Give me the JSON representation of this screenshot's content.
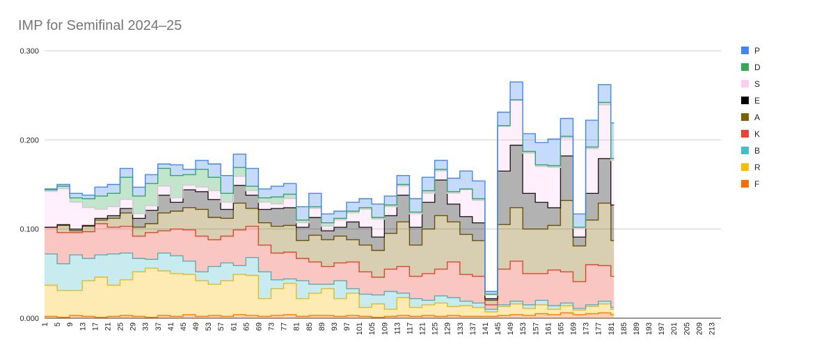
{
  "chart_data": {
    "type": "area",
    "stacked": true,
    "step": true,
    "title": "IMP for Semifinal 2024–25",
    "xlabel": "",
    "ylabel": "",
    "ylim": [
      0,
      0.3
    ],
    "y_ticks": [
      "0.000",
      "0.100",
      "0.200",
      "0.300"
    ],
    "x_range": [
      1,
      216
    ],
    "x_ticks": [
      1,
      5,
      9,
      13,
      17,
      21,
      25,
      29,
      33,
      37,
      41,
      45,
      49,
      53,
      57,
      61,
      65,
      69,
      73,
      77,
      81,
      85,
      89,
      93,
      97,
      101,
      105,
      109,
      113,
      117,
      121,
      125,
      129,
      133,
      137,
      141,
      145,
      149,
      153,
      157,
      161,
      165,
      169,
      173,
      177,
      181,
      185,
      189,
      193,
      197,
      201,
      205,
      209,
      213
    ],
    "data_end_x": 182,
    "grid": true,
    "legend_position": "right",
    "series_colors": {
      "P": "#4285f4",
      "D": "#34a853",
      "S": "#ffccf2",
      "E": "#000000",
      "A": "#7f6000",
      "K": "#ea4335",
      "B": "#46bdc6",
      "R": "#fbbc04",
      "F": "#ff6d01"
    },
    "legend": [
      "P",
      "D",
      "S",
      "E",
      "A",
      "K",
      "B",
      "R",
      "F"
    ],
    "stack_order_bottom_to_top": [
      "F",
      "R",
      "B",
      "K",
      "A",
      "E",
      "S",
      "D",
      "P"
    ],
    "sample_x": [
      1,
      5,
      9,
      13,
      17,
      21,
      25,
      29,
      33,
      37,
      41,
      45,
      49,
      53,
      57,
      61,
      65,
      69,
      73,
      77,
      81,
      85,
      89,
      93,
      97,
      101,
      105,
      109,
      113,
      117,
      121,
      125,
      129,
      133,
      137,
      141,
      145,
      149,
      153,
      157,
      161,
      165,
      169,
      173,
      177,
      181
    ],
    "series": [
      {
        "name": "F",
        "values": [
          0.002,
          0.001,
          0.003,
          0.002,
          0.001,
          0.002,
          0.003,
          0.002,
          0.001,
          0.003,
          0.002,
          0.004,
          0.002,
          0.003,
          0.002,
          0.004,
          0.003,
          0.002,
          0.003,
          0.004,
          0.002,
          0.003,
          0.003,
          0.002,
          0.003,
          0.002,
          0.001,
          0.002,
          0.003,
          0.002,
          0.003,
          0.002,
          0.003,
          0.002,
          0.002,
          0.002,
          0.003,
          0.004,
          0.003,
          0.005,
          0.004,
          0.006,
          0.004,
          0.005,
          0.006,
          0.004
        ]
      },
      {
        "name": "R",
        "values": [
          0.035,
          0.03,
          0.028,
          0.04,
          0.045,
          0.035,
          0.04,
          0.05,
          0.055,
          0.05,
          0.048,
          0.045,
          0.04,
          0.035,
          0.04,
          0.045,
          0.045,
          0.02,
          0.03,
          0.035,
          0.02,
          0.025,
          0.03,
          0.02,
          0.025,
          0.01,
          0.015,
          0.008,
          0.02,
          0.01,
          0.012,
          0.015,
          0.01,
          0.012,
          0.01,
          0.005,
          0.01,
          0.012,
          0.008,
          0.01,
          0.006,
          0.008,
          0.005,
          0.008,
          0.01,
          0.006
        ]
      },
      {
        "name": "B",
        "values": [
          0.035,
          0.03,
          0.04,
          0.025,
          0.025,
          0.035,
          0.03,
          0.015,
          0.01,
          0.02,
          0.02,
          0.015,
          0.01,
          0.02,
          0.02,
          0.01,
          0.02,
          0.03,
          0.01,
          0.005,
          0.02,
          0.01,
          0.005,
          0.02,
          0.005,
          0.015,
          0.01,
          0.02,
          0.005,
          0.01,
          0.005,
          0.008,
          0.01,
          0.005,
          0.005,
          0.003,
          0.002,
          0.003,
          0.004,
          0.005,
          0.004,
          0.003,
          0.002,
          0.002,
          0.003,
          0.002
        ]
      },
      {
        "name": "K",
        "values": [
          0.03,
          0.035,
          0.025,
          0.03,
          0.035,
          0.03,
          0.03,
          0.025,
          0.03,
          0.025,
          0.03,
          0.035,
          0.04,
          0.03,
          0.03,
          0.04,
          0.035,
          0.03,
          0.03,
          0.03,
          0.025,
          0.025,
          0.02,
          0.02,
          0.03,
          0.025,
          0.02,
          0.025,
          0.03,
          0.025,
          0.03,
          0.03,
          0.04,
          0.03,
          0.03,
          0.005,
          0.04,
          0.045,
          0.035,
          0.03,
          0.04,
          0.035,
          0.03,
          0.045,
          0.04,
          0.035
        ]
      },
      {
        "name": "A",
        "values": [
          0.0,
          0.008,
          0.002,
          0.006,
          0.004,
          0.01,
          0.015,
          0.01,
          0.01,
          0.02,
          0.02,
          0.025,
          0.03,
          0.025,
          0.02,
          0.03,
          0.02,
          0.025,
          0.03,
          0.03,
          0.02,
          0.03,
          0.03,
          0.03,
          0.025,
          0.03,
          0.03,
          0.04,
          0.05,
          0.035,
          0.05,
          0.06,
          0.045,
          0.045,
          0.04,
          0.005,
          0.05,
          0.06,
          0.05,
          0.05,
          0.05,
          0.08,
          0.04,
          0.05,
          0.07,
          0.04
        ]
      },
      {
        "name": "E",
        "values": [
          0.0,
          0.001,
          0.002,
          0.001,
          0.002,
          0.003,
          0.005,
          0.01,
          0.015,
          0.02,
          0.01,
          0.02,
          0.02,
          0.02,
          0.01,
          0.02,
          0.015,
          0.015,
          0.02,
          0.02,
          0.015,
          0.02,
          0.01,
          0.01,
          0.02,
          0.02,
          0.015,
          0.02,
          0.03,
          0.02,
          0.03,
          0.04,
          0.02,
          0.02,
          0.02,
          0.002,
          0.06,
          0.07,
          0.04,
          0.03,
          0.02,
          0.05,
          0.01,
          0.03,
          0.05,
          0.04
        ]
      },
      {
        "name": "S",
        "values": [
          0.04,
          0.04,
          0.03,
          0.02,
          0.01,
          0.01,
          0.01,
          0.005,
          0.005,
          0.01,
          0.005,
          0.005,
          0.005,
          0.01,
          0.008,
          0.01,
          0.005,
          0.008,
          0.005,
          0.01,
          0.005,
          0.01,
          0.005,
          0.008,
          0.01,
          0.02,
          0.02,
          0.01,
          0.01,
          0.015,
          0.01,
          0.01,
          0.012,
          0.03,
          0.025,
          0.004,
          0.05,
          0.05,
          0.045,
          0.04,
          0.045,
          0.02,
          0.01,
          0.05,
          0.06,
          0.05
        ]
      },
      {
        "name": "D",
        "values": [
          0.002,
          0.003,
          0.005,
          0.01,
          0.015,
          0.015,
          0.025,
          0.02,
          0.025,
          0.02,
          0.025,
          0.012,
          0.02,
          0.015,
          0.01,
          0.01,
          0.005,
          0.005,
          0.008,
          0.005,
          0.003,
          0.002,
          0.004,
          0.002,
          0.002,
          0.002,
          0.002,
          0.002,
          0.002,
          0.002,
          0.003,
          0.002,
          0.002,
          0.001,
          0.002,
          0.001,
          0.001,
          0.001,
          0.002,
          0.002,
          0.002,
          0.002,
          0.001,
          0.002,
          0.003,
          0.002
        ]
      },
      {
        "name": "P",
        "values": [
          0.001,
          0.002,
          0.005,
          0.004,
          0.01,
          0.01,
          0.01,
          0.01,
          0.01,
          0.005,
          0.012,
          0.006,
          0.01,
          0.015,
          0.02,
          0.015,
          0.02,
          0.01,
          0.012,
          0.012,
          0.015,
          0.015,
          0.01,
          0.008,
          0.01,
          0.01,
          0.015,
          0.01,
          0.01,
          0.015,
          0.015,
          0.01,
          0.015,
          0.02,
          0.02,
          0.003,
          0.015,
          0.02,
          0.02,
          0.025,
          0.03,
          0.02,
          0.015,
          0.03,
          0.02,
          0.04
        ]
      }
    ]
  }
}
